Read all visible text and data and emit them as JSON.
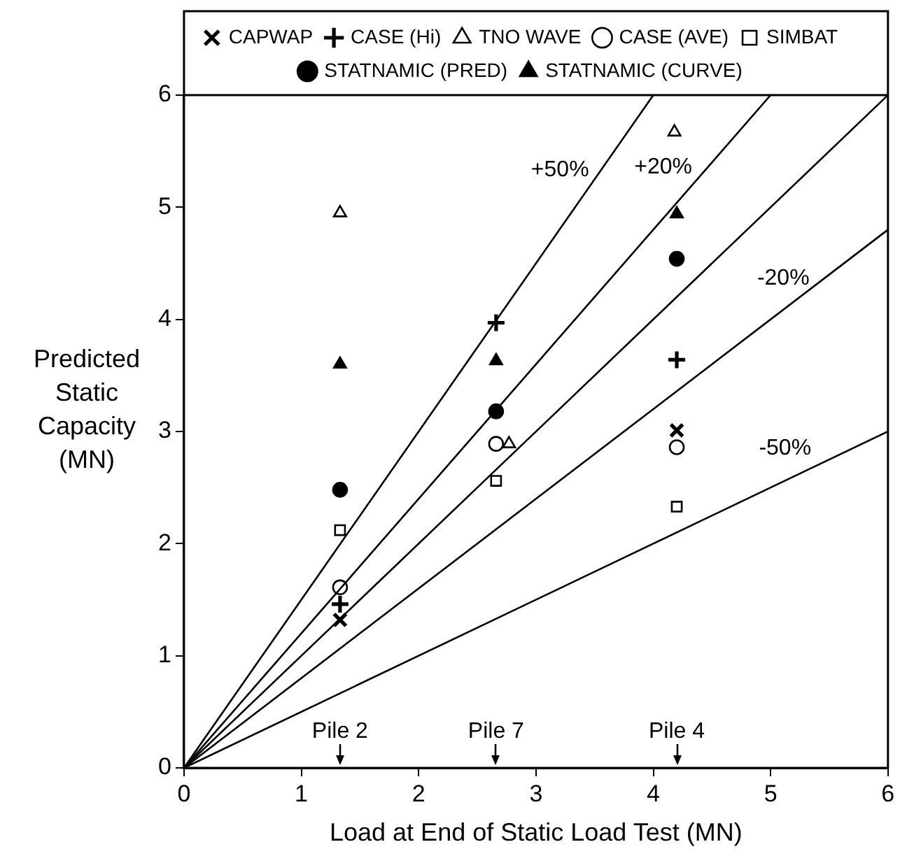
{
  "chart_data": {
    "type": "scatter",
    "xlabel": "Load at End of Static Load Test (MN)",
    "ylabel": "Predicted Static Capacity (MN)",
    "xlim": [
      0,
      6
    ],
    "ylim": [
      0,
      6
    ],
    "xticks": [
      0,
      1,
      2,
      3,
      4,
      5,
      6
    ],
    "yticks": [
      0,
      1,
      2,
      3,
      4,
      5,
      6
    ],
    "grid": false,
    "legend": "top",
    "series": [
      {
        "type": "line",
        "name": "+50%",
        "color": "#000000",
        "x": [
          0,
          4
        ],
        "values": [
          0,
          6
        ]
      },
      {
        "type": "line",
        "name": "+20%",
        "color": "#000000",
        "x": [
          0,
          5
        ],
        "values": [
          0,
          6
        ]
      },
      {
        "type": "line",
        "color": "#000000",
        "x": [
          0,
          6
        ],
        "values": [
          0,
          6
        ]
      },
      {
        "type": "line",
        "name": "-20%",
        "color": "#000000",
        "x": [
          0,
          6
        ],
        "values": [
          0,
          4.8
        ]
      },
      {
        "type": "line",
        "name": "-50%",
        "color": "#000000",
        "x": [
          0,
          6
        ],
        "values": [
          0,
          3
        ]
      },
      {
        "name": "CAPWAP",
        "color": "#000000",
        "marker": "x",
        "x": [
          1.33,
          4.2
        ],
        "values": [
          1.32,
          3.01
        ]
      },
      {
        "name": "CASE (Hi)",
        "color": "#000000",
        "marker": "cross",
        "x": [
          1.33,
          2.66,
          4.2
        ],
        "values": [
          1.46,
          3.97,
          3.64
        ]
      },
      {
        "name": "TNO WAVE",
        "color": "#ffffff",
        "marker": "triangle",
        "x": [
          1.33,
          2.77,
          4.18
        ],
        "values": [
          4.95,
          2.89,
          5.67
        ]
      },
      {
        "name": "CASE (AVE)",
        "color": "#ffffff",
        "marker": "circle",
        "x": [
          1.33,
          2.66,
          4.2
        ],
        "values": [
          1.61,
          2.89,
          2.86
        ]
      },
      {
        "name": "SIMBAT",
        "color": "#ffffff",
        "marker": "square",
        "x": [
          1.33,
          2.66,
          4.2
        ],
        "values": [
          2.12,
          2.56,
          2.33
        ]
      },
      {
        "name": "STATNAMIC (PRED)",
        "color": "#000000",
        "marker": "circle",
        "x": [
          1.33,
          2.66,
          4.2
        ],
        "values": [
          2.48,
          3.18,
          4.54
        ]
      },
      {
        "name": "STATNAMIC (CURVE)",
        "color": "#000000",
        "marker": "triangle",
        "x": [
          1.33,
          2.66,
          4.2
        ],
        "values": [
          3.6,
          3.63,
          4.94
        ]
      }
    ],
    "annotations": [
      {
        "text": "Pile 2",
        "x": 1.33
      },
      {
        "text": "Pile 7",
        "x": 2.66
      },
      {
        "text": "Pile 4",
        "x": 4.2
      }
    ]
  }
}
